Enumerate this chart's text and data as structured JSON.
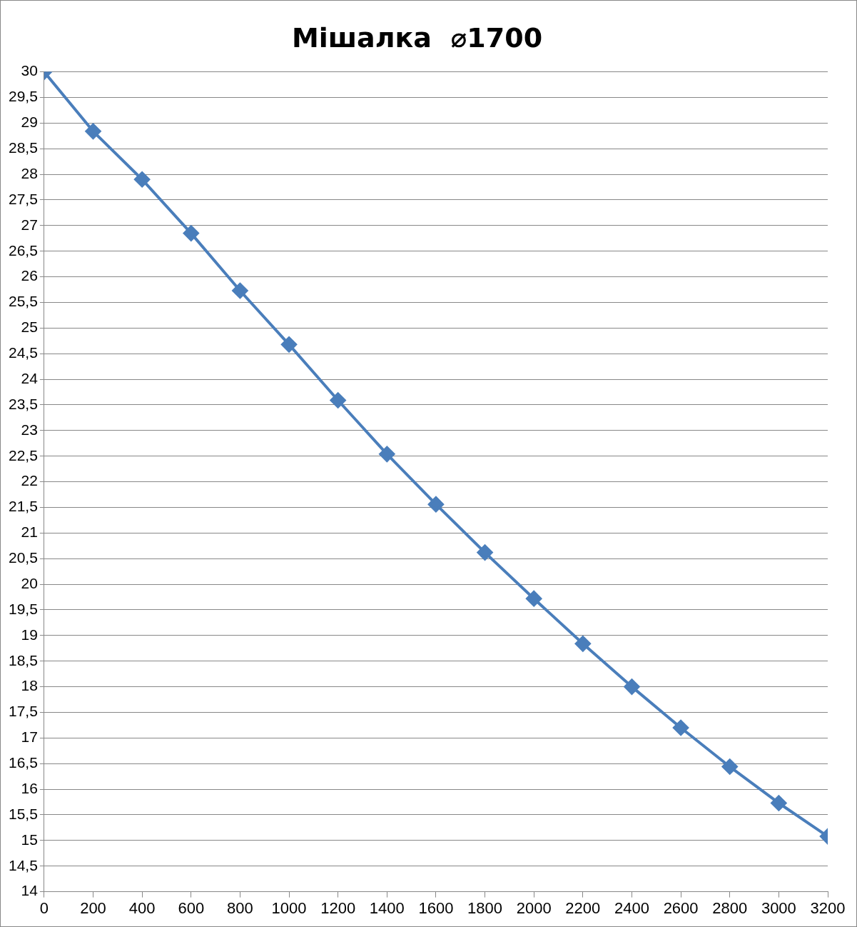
{
  "chart_data": {
    "type": "line",
    "title": "Мішалка  ⌀1700",
    "x": [
      0,
      200,
      400,
      600,
      800,
      1000,
      1200,
      1400,
      1600,
      1800,
      2000,
      2200,
      2400,
      2600,
      2800,
      3000,
      3200
    ],
    "series": [
      {
        "color": "#4a7ebb",
        "values": [
          30,
          28.84,
          27.9,
          26.85,
          25.73,
          24.68,
          23.59,
          22.54,
          21.56,
          20.62,
          19.72,
          18.84,
          18.0,
          17.2,
          16.44,
          15.73,
          15.08
        ]
      }
    ],
    "xlim": [
      0,
      3200
    ],
    "xticks": [
      0,
      200,
      400,
      600,
      800,
      1000,
      1200,
      1400,
      1600,
      1800,
      2000,
      2200,
      2400,
      2600,
      2800,
      3000,
      3200
    ],
    "ylim": [
      14,
      30
    ],
    "yticks": [
      {
        "value": 14,
        "label": "14"
      },
      {
        "value": 14.5,
        "label": "14,5"
      },
      {
        "value": 15,
        "label": "15"
      },
      {
        "value": 15.5,
        "label": "15,5"
      },
      {
        "value": 16,
        "label": "16"
      },
      {
        "value": 16.5,
        "label": "16,5"
      },
      {
        "value": 17,
        "label": "17"
      },
      {
        "value": 17.5,
        "label": "17,5"
      },
      {
        "value": 18,
        "label": "18"
      },
      {
        "value": 18.5,
        "label": "18,5"
      },
      {
        "value": 19,
        "label": "19"
      },
      {
        "value": 19.5,
        "label": "19,5"
      },
      {
        "value": 20,
        "label": "20"
      },
      {
        "value": 20.5,
        "label": "20,5"
      },
      {
        "value": 21,
        "label": "21"
      },
      {
        "value": 21.5,
        "label": "21,5"
      },
      {
        "value": 22,
        "label": "22"
      },
      {
        "value": 22.5,
        "label": "22,5"
      },
      {
        "value": 23,
        "label": "23"
      },
      {
        "value": 23.5,
        "label": "23,5"
      },
      {
        "value": 24,
        "label": "24"
      },
      {
        "value": 24.5,
        "label": "24,5"
      },
      {
        "value": 25,
        "label": "25"
      },
      {
        "value": 25.5,
        "label": "25,5"
      },
      {
        "value": 26,
        "label": "26"
      },
      {
        "value": 26.5,
        "label": "26,5"
      },
      {
        "value": 27,
        "label": "27"
      },
      {
        "value": 27.5,
        "label": "27,5"
      },
      {
        "value": 28,
        "label": "28"
      },
      {
        "value": 28.5,
        "label": "28,5"
      },
      {
        "value": 29,
        "label": "29"
      },
      {
        "value": 29.5,
        "label": "29,5"
      },
      {
        "value": 30,
        "label": "30"
      }
    ],
    "grid": "y",
    "legend": false,
    "marker": "diamond",
    "line_style": "solid"
  }
}
